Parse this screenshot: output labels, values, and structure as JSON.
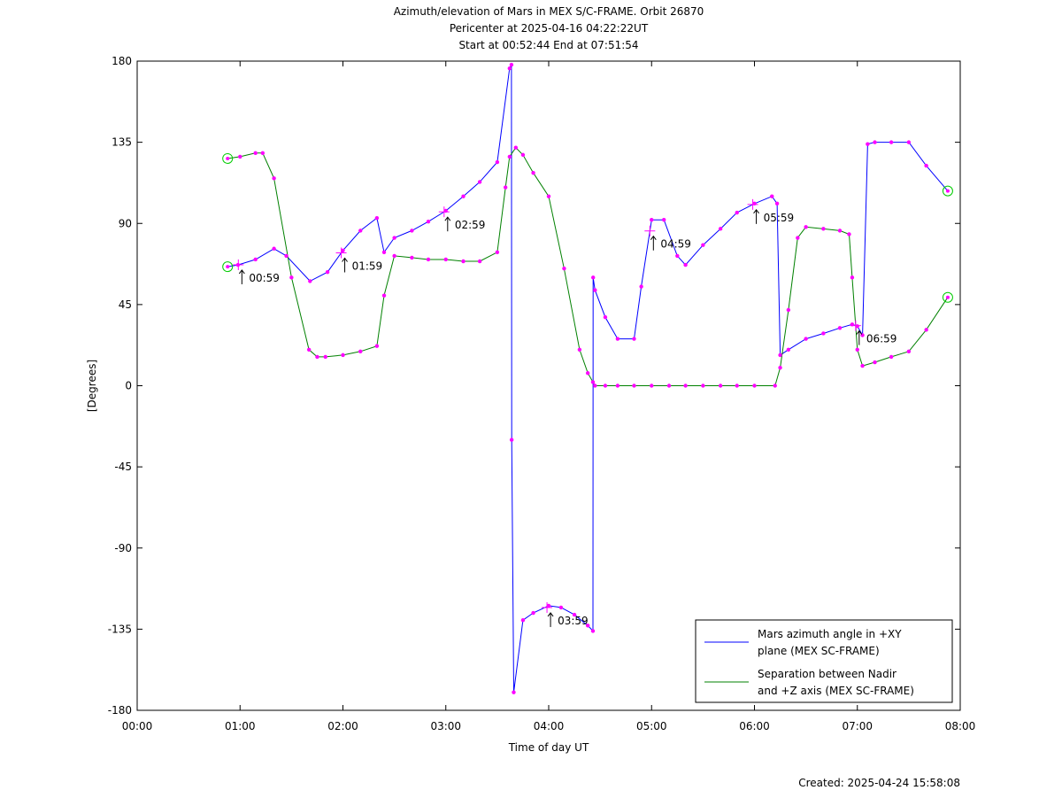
{
  "chart_data": {
    "type": "line",
    "title": [
      "Azimuth/elevation of Mars in MEX S/C-FRAME.  Orbit 26870",
      "Pericenter at 2025-04-16 04:22:22UT",
      "Start at 00:52:44 End at 07:51:54"
    ],
    "xlabel": "Time of day UT",
    "ylabel": "[Degrees]",
    "xlim": [
      0,
      8
    ],
    "ylim": [
      -180,
      180
    ],
    "x_ticks": [
      "00:00",
      "01:00",
      "02:00",
      "03:00",
      "04:00",
      "05:00",
      "06:00",
      "07:00",
      "08:00"
    ],
    "y_ticks": [
      "180",
      "135",
      "90",
      "45",
      "0",
      "-45",
      "-90",
      "-135",
      "-180"
    ],
    "legend_position": "bottom-right",
    "grid": false,
    "series": [
      {
        "name": "Mars azimuth angle in +XY plane (MEX SC-FRAME)",
        "color": "#0000ff",
        "x": [
          0.879,
          0.98,
          1.15,
          1.33,
          1.45,
          1.68,
          1.85,
          2.0,
          2.17,
          2.33,
          2.4,
          2.5,
          2.67,
          2.83,
          3.0,
          3.17,
          3.33,
          3.5,
          3.62,
          3.638,
          3.64,
          3.66,
          3.75,
          3.85,
          4.0,
          4.12,
          4.25,
          4.38,
          4.43,
          4.432,
          4.45,
          4.55,
          4.67,
          4.83,
          4.9,
          5.0,
          5.12,
          5.25,
          5.33,
          5.5,
          5.67,
          5.83,
          6.0,
          6.17,
          6.22,
          6.25,
          6.33,
          6.5,
          6.67,
          6.83,
          6.95,
          7.0,
          7.05,
          7.1,
          7.17,
          7.33,
          7.5,
          7.67,
          7.879
        ],
        "values": [
          66,
          67,
          70,
          76,
          72,
          58,
          63,
          75,
          86,
          93,
          74,
          82,
          86,
          91,
          97,
          105,
          113,
          124,
          176,
          178,
          -30,
          -170,
          -130,
          -126,
          -122,
          -123,
          -127,
          -133,
          -136,
          60,
          53,
          38,
          26,
          26,
          55,
          92,
          92,
          72,
          67,
          78,
          87,
          96,
          101,
          105,
          101,
          17,
          20,
          26,
          29,
          32,
          34,
          33,
          28,
          134,
          135,
          135,
          135,
          122,
          108
        ]
      },
      {
        "name": "Separation between Nadir and +Z axis (MEX SC-FRAME)",
        "color": "#008000",
        "x": [
          0.879,
          1.0,
          1.15,
          1.22,
          1.33,
          1.5,
          1.67,
          1.75,
          1.83,
          2.0,
          2.17,
          2.33,
          2.4,
          2.5,
          2.67,
          2.83,
          3.0,
          3.17,
          3.33,
          3.5,
          3.58,
          3.62,
          3.68,
          3.75,
          3.85,
          4.0,
          4.15,
          4.3,
          4.38,
          4.43,
          4.45,
          4.55,
          4.67,
          4.83,
          5.0,
          5.17,
          5.33,
          5.5,
          5.67,
          5.83,
          6.0,
          6.2,
          6.25,
          6.33,
          6.42,
          6.5,
          6.67,
          6.83,
          6.92,
          6.95,
          7.0,
          7.05,
          7.17,
          7.33,
          7.5,
          7.67,
          7.879
        ],
        "values": [
          126,
          127,
          129,
          129,
          115,
          60,
          20,
          16,
          16,
          17,
          19,
          22,
          50,
          72,
          71,
          70,
          70,
          69,
          69,
          74,
          110,
          127,
          132,
          128,
          118,
          105,
          65,
          20,
          7,
          2,
          0,
          0,
          0,
          0,
          0,
          0,
          0,
          0,
          0,
          0,
          0,
          0,
          10,
          42,
          82,
          88,
          87,
          86,
          84,
          60,
          20,
          11,
          13,
          16,
          19,
          31,
          49
        ]
      }
    ],
    "annotations": [
      "00:59",
      "01:59",
      "02:59",
      "03:59",
      "04:59",
      "05:59",
      "06:59"
    ],
    "footer": "Created: 2025-04-24 15:58:08"
  }
}
